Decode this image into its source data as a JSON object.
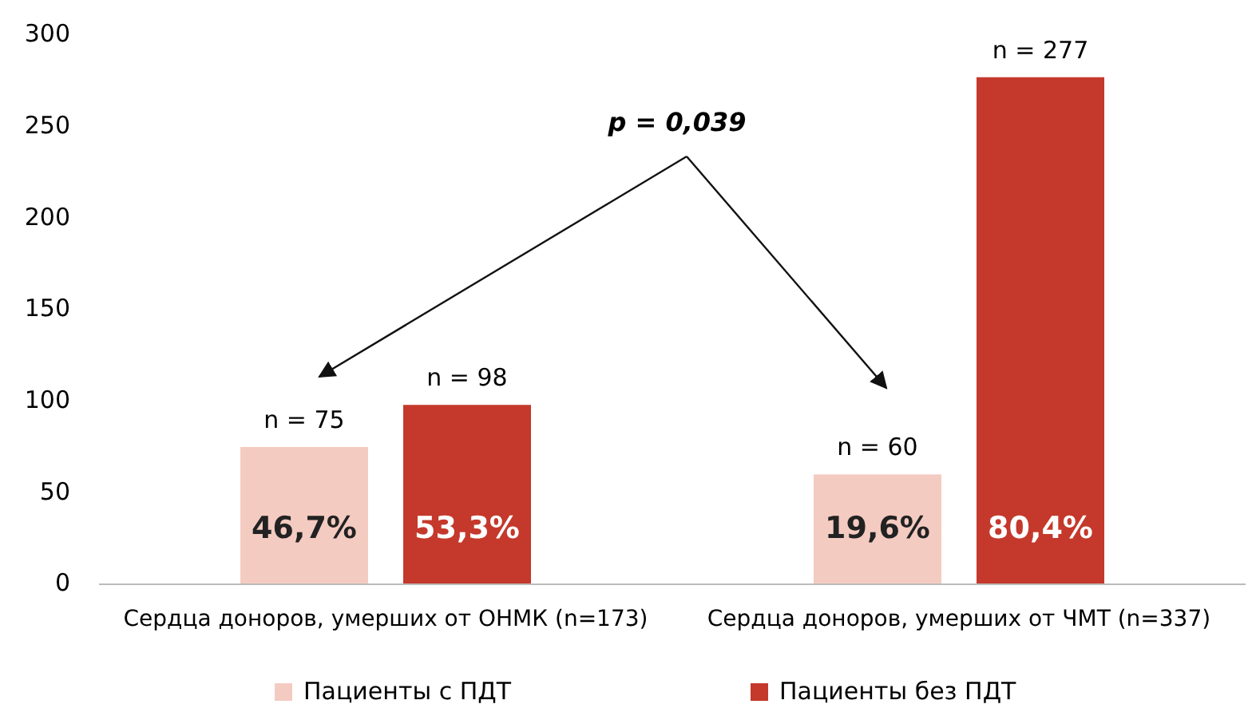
{
  "chart_data": {
    "type": "bar",
    "categories": [
      "Сердца доноров, умерших от ОНМК (n=173)",
      "Сердца доноров, умерших от ЧМТ (n=337)"
    ],
    "series": [
      {
        "name": "Пациенты с ПДТ",
        "color": "#f4cbc1",
        "values": [
          75,
          60
        ],
        "value_labels": [
          "n = 75",
          "n = 60"
        ]
      },
      {
        "name": "Пациенты без ПДТ",
        "color": "#c4392b",
        "values": [
          98,
          277
        ],
        "value_labels": [
          "n = 98",
          "n = 277"
        ]
      }
    ],
    "ylim": [
      0,
      300
    ],
    "yticks": [
      0,
      50,
      100,
      150,
      200,
      250,
      300
    ],
    "grid": false,
    "legend": "bottom",
    "annotations": [
      "46,7%",
      "53,3%",
      "19,6%",
      "80,4%",
      "p = 0,039"
    ]
  }
}
